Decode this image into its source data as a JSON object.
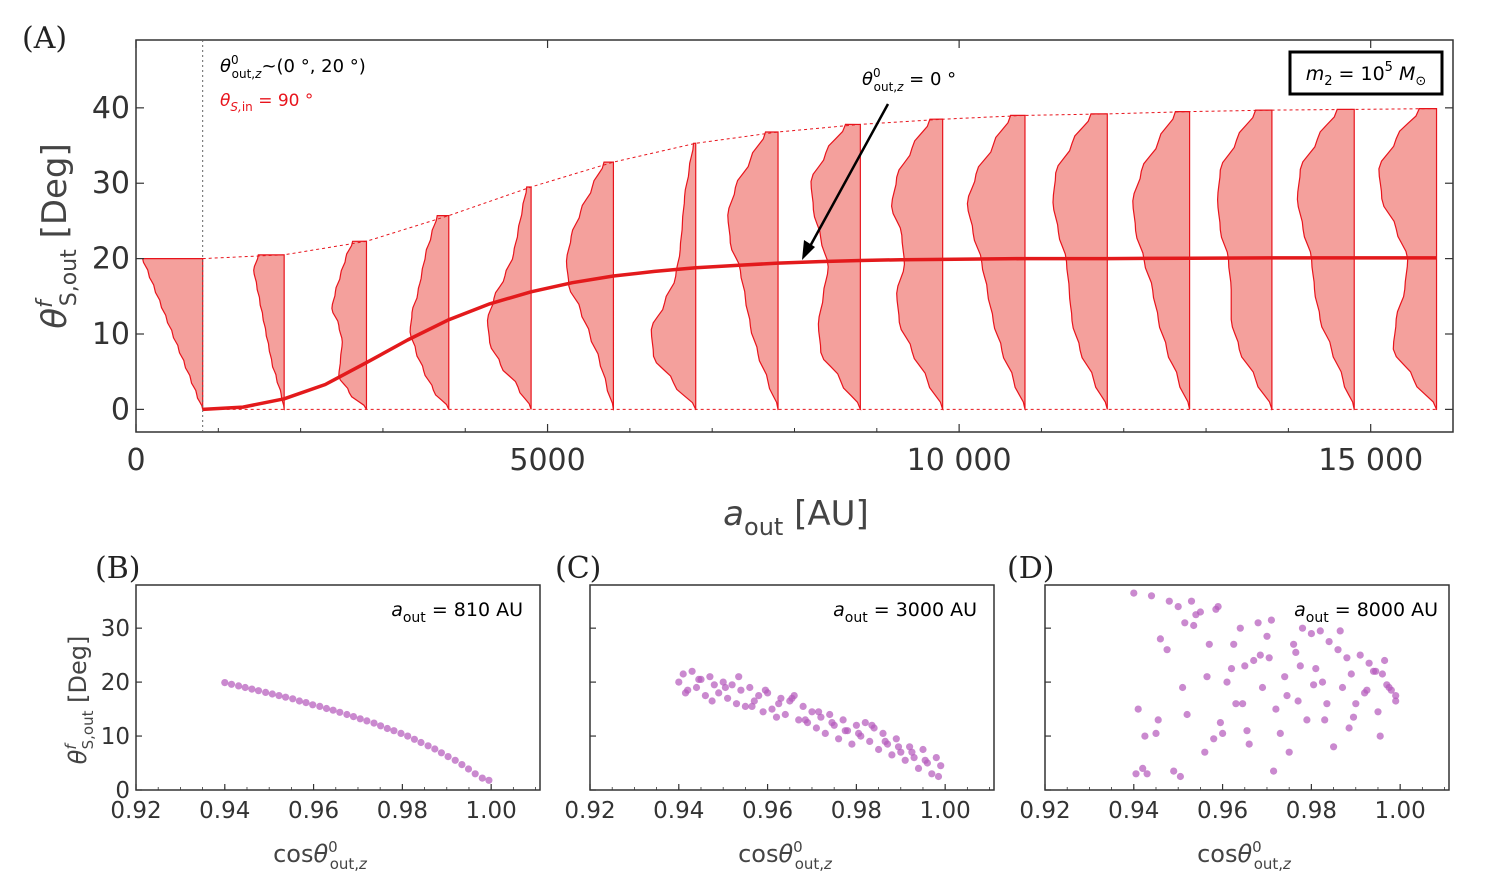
{
  "colors": {
    "violin_fill": "#f4a09c",
    "violin_edge": "#e8141c",
    "mean_line": "#e31a1c",
    "scatter": "#b65bbd",
    "axis": "#333333"
  },
  "panel_a": {
    "letter": "(A)",
    "chart_data": {
      "type": "violin",
      "title": "",
      "xlabel": "a_out [AU]",
      "ylabel": "θ^f_S,out [Deg]",
      "xlim": [
        0,
        16000
      ],
      "ylim": [
        -3,
        49
      ],
      "xticks": [
        0,
        5000,
        10000,
        15000
      ],
      "xtick_labels": [
        "0",
        "5000",
        "10 000",
        "15 000"
      ],
      "yticks": [
        0,
        10,
        20,
        30,
        40
      ],
      "ytick_labels": [
        "0",
        "10",
        "20",
        "30",
        "40"
      ],
      "vline_x": 810,
      "violins": [
        {
          "x": 810,
          "max": 20.0,
          "width": 730,
          "profile": [
            0.0,
            0.1,
            0.2,
            0.3,
            0.4,
            0.5,
            0.6,
            0.7,
            0.8,
            0.9,
            1.0
          ]
        },
        {
          "x": 1800,
          "max": 20.5,
          "width": 370,
          "profile": [
            0.0,
            0.1,
            0.25,
            0.4,
            0.5,
            0.6,
            0.7,
            0.8,
            0.9,
            1.0,
            0.85
          ]
        },
        {
          "x": 2800,
          "max": 22.3,
          "width": 420,
          "profile": [
            0.0,
            0.5,
            0.8,
            0.75,
            0.7,
            0.8,
            1.0,
            0.9,
            0.75,
            0.6,
            0.4
          ]
        },
        {
          "x": 3800,
          "max": 25.7,
          "width": 470,
          "profile": [
            0.0,
            0.4,
            0.65,
            0.85,
            1.0,
            0.95,
            0.8,
            0.7,
            0.6,
            0.45,
            0.3
          ]
        },
        {
          "x": 4800,
          "max": 29.5,
          "width": 530,
          "profile": [
            0.0,
            0.3,
            0.7,
            0.95,
            1.0,
            0.85,
            0.6,
            0.4,
            0.3,
            0.2,
            0.1
          ]
        },
        {
          "x": 5800,
          "max": 32.8,
          "width": 570,
          "profile": [
            0.0,
            0.15,
            0.3,
            0.5,
            0.7,
            0.95,
            1.0,
            0.9,
            0.7,
            0.45,
            0.2
          ]
        },
        {
          "x": 6800,
          "max": 35.3,
          "width": 540,
          "profile": [
            0.0,
            0.5,
            0.95,
            1.0,
            0.7,
            0.45,
            0.35,
            0.3,
            0.25,
            0.15,
            0.05
          ]
        },
        {
          "x": 7800,
          "max": 36.8,
          "width": 610,
          "profile": [
            0.0,
            0.2,
            0.4,
            0.55,
            0.65,
            0.75,
            0.95,
            1.0,
            0.85,
            0.55,
            0.25
          ]
        },
        {
          "x": 8800,
          "max": 37.8,
          "width": 600,
          "profile": [
            0.0,
            0.4,
            0.8,
            0.85,
            0.75,
            0.65,
            0.8,
            0.95,
            1.0,
            0.7,
            0.3
          ]
        },
        {
          "x": 9800,
          "max": 38.5,
          "width": 620,
          "profile": [
            0.0,
            0.3,
            0.6,
            0.85,
            0.9,
            0.75,
            0.8,
            1.0,
            0.9,
            0.6,
            0.25
          ]
        },
        {
          "x": 10800,
          "max": 39.0,
          "width": 700,
          "profile": [
            0.0,
            0.2,
            0.4,
            0.55,
            0.65,
            0.75,
            0.9,
            1.0,
            0.85,
            0.55,
            0.25
          ]
        },
        {
          "x": 11800,
          "max": 39.2,
          "width": 660,
          "profile": [
            0.0,
            0.25,
            0.5,
            0.65,
            0.7,
            0.75,
            0.9,
            1.0,
            0.95,
            0.65,
            0.3
          ]
        },
        {
          "x": 12800,
          "max": 39.5,
          "width": 690,
          "profile": [
            0.0,
            0.2,
            0.4,
            0.55,
            0.65,
            0.8,
            0.95,
            1.0,
            0.85,
            0.55,
            0.25
          ]
        },
        {
          "x": 13800,
          "max": 39.7,
          "width": 660,
          "profile": [
            0.0,
            0.3,
            0.6,
            0.75,
            0.75,
            0.8,
            0.95,
            1.0,
            0.95,
            0.65,
            0.3
          ]
        },
        {
          "x": 14800,
          "max": 39.8,
          "width": 690,
          "profile": [
            0.0,
            0.2,
            0.4,
            0.6,
            0.7,
            0.75,
            0.9,
            1.0,
            0.95,
            0.65,
            0.3
          ]
        },
        {
          "x": 15800,
          "max": 39.9,
          "width": 700,
          "profile": [
            0.0,
            0.4,
            0.75,
            0.7,
            0.55,
            0.5,
            0.7,
            0.95,
            1.0,
            0.7,
            0.3
          ]
        }
      ],
      "mean_curve": {
        "x": [
          810,
          1300,
          1800,
          2300,
          2800,
          3300,
          3800,
          4300,
          4800,
          5300,
          5800,
          6300,
          6800,
          7300,
          7800,
          8300,
          8800,
          9300,
          9800,
          10800,
          11800,
          12800,
          13800,
          14800,
          15800
        ],
        "y": [
          0.0,
          0.3,
          1.4,
          3.3,
          6.2,
          9.2,
          11.9,
          14.0,
          15.6,
          16.8,
          17.7,
          18.3,
          18.8,
          19.1,
          19.4,
          19.6,
          19.75,
          19.85,
          19.9,
          20.0,
          20.0,
          20.05,
          20.1,
          20.1,
          20.1
        ]
      },
      "upper_envelope": {
        "x": [
          810,
          1800,
          2800,
          3800,
          4800,
          5800,
          6800,
          7800,
          8800,
          9800,
          10800,
          11800,
          12800,
          13800,
          14800,
          15800
        ],
        "y": [
          20.0,
          20.5,
          22.3,
          25.7,
          29.5,
          32.8,
          35.3,
          36.8,
          37.8,
          38.5,
          39.0,
          39.2,
          39.5,
          39.7,
          39.8,
          39.9
        ]
      }
    },
    "legend_range": "θ⁰out,z ~(0 °,  20 °)",
    "legend_spin": "θS,in = 90 °",
    "arrow_label": "θ⁰out,z = 0 °",
    "arrow_target": {
      "x": 8100,
      "y": 19.6
    },
    "mass_box": "m₂ = 10⁵ M⊙"
  },
  "panel_b": {
    "letter": "(B)",
    "inset": "aout = 810 AU",
    "chart_data": {
      "type": "scatter",
      "xlabel": "cosθ⁰out,z",
      "ylabel": "θ^f_S,out [Deg]",
      "xlim": [
        0.92,
        1.011
      ],
      "ylim": [
        0,
        38
      ],
      "xticks": [
        0.92,
        0.94,
        0.96,
        0.98,
        1.0
      ],
      "xtick_labels": [
        "0.92",
        "0.94",
        "0.96",
        "0.98",
        "1.00"
      ],
      "yticks": [
        0,
        10,
        20,
        30
      ],
      "ytick_labels": [
        "0",
        "10",
        "20",
        "30"
      ],
      "aout": 810,
      "x": [
        0.94,
        0.9415,
        0.9431,
        0.9446,
        0.9461,
        0.9476,
        0.9492,
        0.9507,
        0.9522,
        0.9537,
        0.9553,
        0.9568,
        0.9583,
        0.9598,
        0.9614,
        0.9629,
        0.9644,
        0.9659,
        0.9675,
        0.969,
        0.9705,
        0.972,
        0.9736,
        0.9751,
        0.9766,
        0.9781,
        0.9797,
        0.9812,
        0.9827,
        0.9842,
        0.9858,
        0.9873,
        0.9888,
        0.9903,
        0.9919,
        0.9934,
        0.9949,
        0.9964,
        0.998,
        0.9995
      ],
      "y": [
        19.9,
        19.6,
        19.3,
        19.0,
        18.7,
        18.4,
        18.1,
        17.8,
        17.5,
        17.2,
        16.9,
        16.5,
        16.2,
        15.8,
        15.5,
        15.1,
        14.8,
        14.4,
        14.0,
        13.6,
        13.2,
        12.8,
        12.4,
        11.9,
        11.4,
        11.0,
        10.5,
        10.0,
        9.4,
        8.8,
        8.2,
        7.6,
        6.9,
        6.2,
        5.5,
        4.7,
        3.9,
        3.0,
        2.2,
        1.8
      ]
    }
  },
  "panel_c": {
    "letter": "(C)",
    "inset": "aout = 3000 AU",
    "chart_data": {
      "type": "scatter",
      "xlabel": "cosθ⁰out,z",
      "ylabel": "",
      "xlim": [
        0.92,
        1.011
      ],
      "ylim": [
        0,
        38
      ],
      "xticks": [
        0.92,
        0.94,
        0.96,
        0.98,
        1.0
      ],
      "xtick_labels": [
        "0.92",
        "0.94",
        "0.96",
        "0.98",
        "1.00"
      ],
      "aout": 3000,
      "x": [
        0.94,
        0.941,
        0.942,
        0.943,
        0.944,
        0.945,
        0.946,
        0.947,
        0.948,
        0.949,
        0.95,
        0.951,
        0.952,
        0.953,
        0.954,
        0.955,
        0.956,
        0.957,
        0.958,
        0.959,
        0.96,
        0.961,
        0.962,
        0.963,
        0.964,
        0.965,
        0.966,
        0.967,
        0.968,
        0.969,
        0.97,
        0.971,
        0.972,
        0.973,
        0.974,
        0.975,
        0.976,
        0.977,
        0.978,
        0.979,
        0.98,
        0.981,
        0.982,
        0.983,
        0.984,
        0.985,
        0.986,
        0.987,
        0.988,
        0.989,
        0.99,
        0.991,
        0.992,
        0.993,
        0.994,
        0.995,
        0.996,
        0.997,
        0.998,
        0.999,
        0.9415,
        0.9445,
        0.9475,
        0.9505,
        0.9535,
        0.9565,
        0.9595,
        0.9625,
        0.9655,
        0.9685,
        0.9715,
        0.9745,
        0.9775,
        0.9805,
        0.9835,
        0.9865,
        0.9895,
        0.9925,
        0.9955,
        0.9985
      ],
      "y": [
        20.0,
        21.5,
        18.5,
        22.0,
        19.0,
        20.5,
        17.5,
        21.0,
        19.5,
        18.0,
        20.0,
        17.0,
        19.5,
        16.0,
        18.5,
        15.5,
        19.0,
        16.5,
        17.5,
        14.5,
        18.0,
        15.0,
        13.5,
        17.0,
        14.0,
        16.5,
        17.5,
        13.0,
        15.5,
        12.5,
        14.5,
        11.5,
        13.5,
        10.5,
        14.0,
        12.0,
        9.5,
        13.0,
        11.0,
        8.5,
        12.0,
        10.0,
        12.5,
        9.0,
        11.5,
        7.5,
        10.5,
        8.5,
        6.5,
        9.5,
        7.0,
        5.5,
        8.0,
        6.0,
        4.0,
        7.5,
        5.0,
        3.0,
        6.0,
        4.5,
        18.0,
        20.5,
        16.5,
        19.0,
        21.0,
        15.5,
        18.5,
        16.0,
        17.0,
        13.0,
        14.5,
        12.5,
        11.0,
        10.5,
        12.0,
        9.0,
        8.0,
        7.0,
        5.5,
        2.5
      ]
    }
  },
  "panel_d": {
    "letter": "(D)",
    "inset": "aout = 8000 AU",
    "chart_data": {
      "type": "scatter",
      "xlabel": "cosθ⁰out,z",
      "ylabel": "",
      "xlim": [
        0.92,
        1.011
      ],
      "ylim": [
        0,
        38
      ],
      "xticks": [
        0.92,
        0.94,
        0.96,
        0.98,
        1.0
      ],
      "xtick_labels": [
        "0.92",
        "0.94",
        "0.96",
        "0.98",
        "1.00"
      ],
      "aout": 8000,
      "x": [
        0.94,
        0.941,
        0.942,
        0.943,
        0.944,
        0.945,
        0.946,
        0.948,
        0.949,
        0.95,
        0.951,
        0.952,
        0.953,
        0.954,
        0.955,
        0.956,
        0.957,
        0.958,
        0.959,
        0.96,
        0.961,
        0.962,
        0.963,
        0.964,
        0.965,
        0.966,
        0.967,
        0.968,
        0.969,
        0.97,
        0.971,
        0.972,
        0.973,
        0.974,
        0.975,
        0.976,
        0.977,
        0.978,
        0.979,
        0.98,
        0.981,
        0.982,
        0.983,
        0.984,
        0.985,
        0.986,
        0.987,
        0.988,
        0.989,
        0.99,
        0.991,
        0.992,
        0.993,
        0.994,
        0.995,
        0.996,
        0.997,
        0.998,
        0.999,
        0.9405,
        0.9425,
        0.9455,
        0.9475,
        0.9505,
        0.9535,
        0.9565,
        0.9595,
        0.9625,
        0.9655,
        0.9685,
        0.9715,
        0.9745,
        0.9775,
        0.9805,
        0.9835,
        0.9865,
        0.9895,
        0.9925,
        0.9955,
        0.9975,
        0.999,
        0.9515,
        0.9585,
        0.9645,
        0.9705,
        0.9765,
        0.9825,
        0.9885,
        0.9945,
        0.9965
      ],
      "y": [
        36.5,
        15.0,
        4.0,
        3.0,
        36.0,
        10.5,
        28.0,
        35.0,
        3.5,
        34.0,
        19.0,
        14.0,
        35.0,
        32.5,
        33.0,
        7.0,
        27.0,
        9.5,
        34.0,
        10.5,
        20.0,
        22.5,
        16.0,
        30.0,
        23.0,
        8.5,
        24.0,
        31.0,
        19.0,
        28.5,
        31.5,
        15.0,
        10.5,
        21.0,
        7.0,
        27.0,
        16.5,
        30.0,
        13.0,
        29.0,
        22.5,
        29.5,
        13.0,
        27.5,
        8.0,
        26.0,
        19.0,
        24.5,
        21.5,
        16.0,
        25.0,
        18.0,
        23.5,
        22.0,
        14.5,
        21.5,
        19.5,
        18.5,
        16.5,
        3.0,
        10.0,
        13.0,
        26.0,
        2.5,
        30.5,
        21.0,
        12.5,
        27.0,
        11.0,
        25.0,
        3.5,
        17.5,
        23.0,
        19.5,
        16.0,
        29.5,
        13.5,
        18.5,
        10.0,
        19.0,
        17.5,
        31.0,
        33.5,
        16.0,
        24.5,
        25.5,
        20.0,
        11.5,
        22.0,
        24.0
      ]
    }
  }
}
